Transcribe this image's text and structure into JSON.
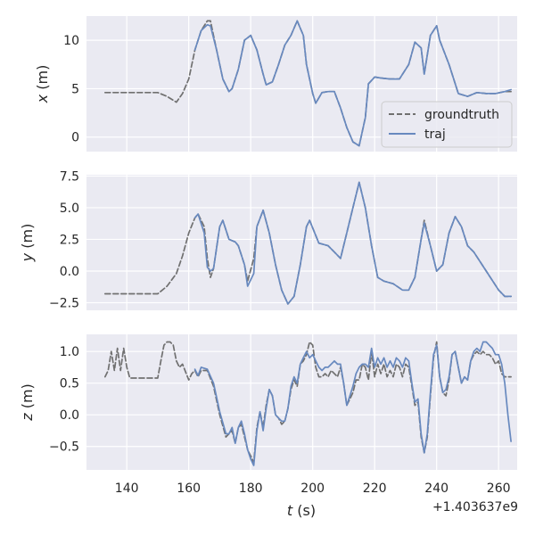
{
  "chart_data": [
    {
      "type": "line",
      "ylabel_var": "x",
      "ylabel_unit": " (m)",
      "xlim": [
        127,
        266
      ],
      "ylim": [
        -1.5,
        12.5
      ],
      "yticks": [
        0,
        5,
        10
      ],
      "ytick_labels": [
        "0",
        "5",
        "10"
      ],
      "grid": true,
      "legend": {
        "placement": "right",
        "entries": [
          "groundtruth",
          "traj"
        ]
      },
      "series": [
        {
          "name": "groundtruth",
          "style": "dashed",
          "color": "#707070",
          "x": [
            133,
            150,
            153,
            156,
            158,
            160,
            162,
            164,
            166,
            167,
            169,
            171,
            173,
            174,
            176,
            178,
            180,
            182,
            184,
            185,
            187,
            189,
            191,
            193,
            195,
            197,
            198,
            200,
            201,
            203,
            205,
            207,
            209,
            211,
            213,
            215,
            217,
            218,
            220,
            222,
            225,
            228,
            231,
            233,
            235,
            236,
            238,
            240,
            241,
            244,
            247,
            250,
            253,
            256,
            259,
            262,
            264
          ],
          "y": [
            4.6,
            4.6,
            4.2,
            3.6,
            4.5,
            6.0,
            9.0,
            11.0,
            12.0,
            12.0,
            9.0,
            6.0,
            4.7,
            5.0,
            7.0,
            10.0,
            10.5,
            9.0,
            6.5,
            5.4,
            5.7,
            7.5,
            9.5,
            10.5,
            12.0,
            10.5,
            7.5,
            4.5,
            3.5,
            4.6,
            4.7,
            4.7,
            3.0,
            1.0,
            -0.5,
            -0.9,
            2.0,
            5.5,
            6.2,
            6.1,
            6.0,
            6.0,
            7.5,
            9.8,
            9.2,
            6.5,
            10.5,
            11.5,
            10.0,
            7.5,
            4.5,
            4.2,
            4.6,
            4.5,
            4.5,
            4.7,
            4.7
          ]
        },
        {
          "name": "traj",
          "style": "solid",
          "color": "#6889bf",
          "x": [
            162,
            164,
            166,
            167,
            169,
            171,
            173,
            174,
            176,
            178,
            180,
            182,
            184,
            185,
            187,
            189,
            191,
            193,
            195,
            197,
            198,
            200,
            201,
            203,
            205,
            207,
            209,
            211,
            213,
            215,
            217,
            218,
            220,
            222,
            225,
            228,
            231,
            233,
            235,
            236,
            238,
            240,
            241,
            244,
            247,
            250,
            253,
            256,
            259,
            262,
            264
          ],
          "y": [
            9.0,
            11.0,
            11.6,
            11.5,
            9.0,
            6.0,
            4.7,
            5.0,
            7.0,
            10.0,
            10.5,
            9.0,
            6.5,
            5.4,
            5.7,
            7.5,
            9.5,
            10.5,
            12.0,
            10.5,
            7.5,
            4.5,
            3.5,
            4.6,
            4.7,
            4.7,
            3.0,
            1.0,
            -0.5,
            -0.9,
            2.0,
            5.5,
            6.2,
            6.1,
            6.0,
            6.0,
            7.5,
            9.8,
            9.2,
            6.5,
            10.5,
            11.5,
            10.0,
            7.5,
            4.5,
            4.2,
            4.6,
            4.5,
            4.5,
            4.7,
            4.9
          ]
        }
      ]
    },
    {
      "type": "line",
      "ylabel_var": "y",
      "ylabel_unit": " (m)",
      "xlim": [
        127,
        266
      ],
      "ylim": [
        -3.1,
        7.6
      ],
      "yticks": [
        -2.5,
        0.0,
        2.5,
        5.0,
        7.5
      ],
      "ytick_labels": [
        "−2.5",
        "0.0",
        "2.5",
        "5.0",
        "7.5"
      ],
      "grid": true,
      "series": [
        {
          "name": "groundtruth",
          "style": "dashed",
          "color": "#707070",
          "x": [
            133,
            150,
            153,
            156,
            158,
            160,
            162,
            163,
            165,
            166,
            167,
            168,
            170,
            171,
            173,
            175,
            176,
            178,
            179,
            181,
            182,
            184,
            186,
            188,
            190,
            192,
            194,
            196,
            198,
            199,
            202,
            205,
            207,
            209,
            211,
            213,
            215,
            217,
            219,
            221,
            223,
            226,
            229,
            231,
            233,
            235,
            236,
            238,
            240,
            242,
            244,
            246,
            248,
            250,
            252,
            256,
            260,
            262,
            264
          ],
          "y": [
            -1.8,
            -1.8,
            -1.2,
            -0.2,
            1.2,
            3.0,
            4.2,
            4.5,
            3.5,
            1.0,
            -0.5,
            0.2,
            3.5,
            4.0,
            2.5,
            2.3,
            2.0,
            0.5,
            -0.8,
            1.0,
            3.5,
            4.8,
            3.0,
            0.5,
            -1.5,
            -2.6,
            -2.0,
            0.5,
            3.5,
            4.0,
            2.2,
            2.0,
            1.5,
            1.0,
            3.0,
            5.0,
            7.0,
            5.0,
            2.0,
            -0.5,
            -0.8,
            -1.0,
            -1.5,
            -1.5,
            -0.5,
            2.5,
            4.0,
            2.0,
            0.0,
            0.5,
            3.0,
            4.3,
            3.5,
            2.0,
            1.5,
            0.0,
            -1.5,
            -2.0,
            -2.0
          ]
        },
        {
          "name": "traj",
          "style": "solid",
          "color": "#6889bf",
          "x": [
            162,
            163,
            165,
            166,
            167,
            168,
            170,
            171,
            173,
            175,
            176,
            178,
            179,
            181,
            182,
            184,
            186,
            188,
            190,
            192,
            194,
            196,
            198,
            199,
            202,
            205,
            207,
            209,
            211,
            213,
            215,
            217,
            219,
            221,
            223,
            226,
            229,
            231,
            233,
            235,
            236,
            238,
            240,
            242,
            244,
            246,
            248,
            250,
            252,
            256,
            260,
            262,
            264
          ],
          "y": [
            4.2,
            4.5,
            3.0,
            0.3,
            0.0,
            0.2,
            3.5,
            4.0,
            2.5,
            2.3,
            2.0,
            0.5,
            -1.2,
            -0.2,
            3.5,
            4.8,
            3.0,
            0.5,
            -1.5,
            -2.6,
            -2.0,
            0.5,
            3.5,
            4.0,
            2.2,
            2.0,
            1.5,
            1.0,
            3.0,
            5.0,
            7.0,
            5.0,
            2.0,
            -0.5,
            -0.8,
            -1.0,
            -1.5,
            -1.5,
            -0.5,
            2.5,
            3.8,
            2.0,
            0.0,
            0.5,
            3.0,
            4.3,
            3.5,
            2.0,
            1.5,
            0.0,
            -1.5,
            -2.0,
            -2.0
          ]
        }
      ]
    },
    {
      "type": "line",
      "ylabel_var": "z",
      "ylabel_unit": " (m)",
      "xlabel_var": "t",
      "xlabel_unit": " (s)",
      "x_offset_label": "+1.403637e9",
      "xlim": [
        127,
        266
      ],
      "ylim": [
        -0.87,
        1.27
      ],
      "xticks": [
        140,
        160,
        180,
        200,
        220,
        240,
        260
      ],
      "xtick_labels": [
        "140",
        "160",
        "180",
        "200",
        "220",
        "240",
        "260"
      ],
      "yticks": [
        -0.5,
        0.0,
        0.5,
        1.0
      ],
      "ytick_labels": [
        "−0.5",
        "0.0",
        "0.5",
        "1.0"
      ],
      "grid": true,
      "series": [
        {
          "name": "groundtruth",
          "style": "dashed",
          "color": "#707070",
          "x": [
            133,
            134,
            135,
            136,
            137,
            138,
            139,
            140,
            141,
            150,
            151,
            152,
            153,
            154,
            155,
            156,
            157,
            158,
            160,
            161,
            162,
            163,
            164,
            166,
            168,
            170,
            172,
            173,
            174,
            175,
            176,
            177,
            178,
            179,
            180,
            181,
            182,
            183,
            184,
            185,
            186,
            187,
            188,
            189,
            190,
            191,
            192,
            193,
            194,
            195,
            196,
            197,
            198,
            199,
            200,
            201,
            202,
            203,
            204,
            205,
            206,
            207,
            208,
            209,
            210,
            211,
            212,
            213,
            214,
            215,
            216,
            217,
            218,
            219,
            220,
            221,
            222,
            223,
            224,
            225,
            226,
            227,
            228,
            229,
            230,
            231,
            232,
            233,
            234,
            235,
            236,
            237,
            238,
            239,
            240,
            241,
            242,
            243,
            244,
            245,
            246,
            247,
            248,
            249,
            250,
            251,
            252,
            253,
            254,
            255,
            256,
            257,
            258,
            259,
            260,
            261,
            262,
            263,
            264
          ],
          "y": [
            0.6,
            0.7,
            1.0,
            0.7,
            1.05,
            0.7,
            1.05,
            0.75,
            0.58,
            0.58,
            0.85,
            1.1,
            1.15,
            1.15,
            1.1,
            0.85,
            0.75,
            0.8,
            0.55,
            0.65,
            0.7,
            0.6,
            0.7,
            0.7,
            0.45,
            0.0,
            -0.35,
            -0.3,
            -0.25,
            -0.45,
            -0.2,
            -0.15,
            -0.35,
            -0.55,
            -0.65,
            -0.75,
            -0.2,
            0.05,
            -0.2,
            0.15,
            0.4,
            0.3,
            0.0,
            -0.05,
            -0.15,
            -0.1,
            0.1,
            0.4,
            0.55,
            0.45,
            0.8,
            0.85,
            0.95,
            1.15,
            1.1,
            0.75,
            0.6,
            0.6,
            0.65,
            0.6,
            0.7,
            0.65,
            0.6,
            0.75,
            0.5,
            0.15,
            0.25,
            0.35,
            0.55,
            0.55,
            0.8,
            0.75,
            0.55,
            1.0,
            0.6,
            0.8,
            0.65,
            0.8,
            0.6,
            0.7,
            0.6,
            0.8,
            0.75,
            0.6,
            0.8,
            0.75,
            0.45,
            0.15,
            0.2,
            -0.35,
            -0.6,
            -0.35,
            0.3,
            0.9,
            1.15,
            0.6,
            0.35,
            0.3,
            0.55,
            0.95,
            1.0,
            0.75,
            0.5,
            0.6,
            0.55,
            0.85,
            0.95,
            1.0,
            0.95,
            1.0,
            0.95,
            0.95,
            0.9,
            0.8,
            0.85,
            0.65,
            0.6,
            0.6,
            0.6
          ]
        },
        {
          "name": "traj",
          "style": "solid",
          "color": "#6889bf",
          "x": [
            162,
            163,
            164,
            166,
            168,
            170,
            172,
            173,
            174,
            175,
            176,
            177,
            178,
            179,
            180,
            181,
            182,
            183,
            184,
            185,
            186,
            187,
            188,
            189,
            190,
            191,
            192,
            193,
            194,
            195,
            196,
            197,
            198,
            199,
            200,
            201,
            202,
            203,
            204,
            205,
            206,
            207,
            208,
            209,
            210,
            211,
            212,
            213,
            214,
            215,
            216,
            217,
            218,
            219,
            220,
            221,
            222,
            223,
            224,
            225,
            226,
            227,
            228,
            229,
            230,
            231,
            232,
            233,
            234,
            235,
            236,
            237,
            238,
            239,
            240,
            241,
            242,
            243,
            244,
            245,
            246,
            247,
            248,
            249,
            250,
            251,
            252,
            253,
            254,
            255,
            256,
            257,
            258,
            259,
            260,
            261,
            262,
            263,
            264
          ],
          "y": [
            0.72,
            0.62,
            0.75,
            0.72,
            0.5,
            0.05,
            -0.3,
            -0.3,
            -0.2,
            -0.45,
            -0.2,
            -0.1,
            -0.3,
            -0.55,
            -0.7,
            -0.8,
            -0.25,
            0.05,
            -0.25,
            0.1,
            0.4,
            0.3,
            0.0,
            -0.05,
            -0.1,
            -0.1,
            0.1,
            0.45,
            0.6,
            0.5,
            0.8,
            0.9,
            1.0,
            0.9,
            0.95,
            0.85,
            0.75,
            0.7,
            0.75,
            0.75,
            0.8,
            0.85,
            0.8,
            0.8,
            0.5,
            0.15,
            0.3,
            0.45,
            0.65,
            0.75,
            0.8,
            0.8,
            0.75,
            1.05,
            0.75,
            0.9,
            0.8,
            0.9,
            0.75,
            0.85,
            0.75,
            0.9,
            0.85,
            0.75,
            0.9,
            0.85,
            0.5,
            0.2,
            0.25,
            -0.3,
            -0.6,
            -0.3,
            0.35,
            0.95,
            1.1,
            0.6,
            0.35,
            0.4,
            0.6,
            0.95,
            1.0,
            0.75,
            0.5,
            0.6,
            0.55,
            0.85,
            1.0,
            1.05,
            1.0,
            1.15,
            1.15,
            1.1,
            1.05,
            0.95,
            0.95,
            0.8,
            0.5,
            0.0,
            -0.42
          ]
        }
      ]
    }
  ]
}
